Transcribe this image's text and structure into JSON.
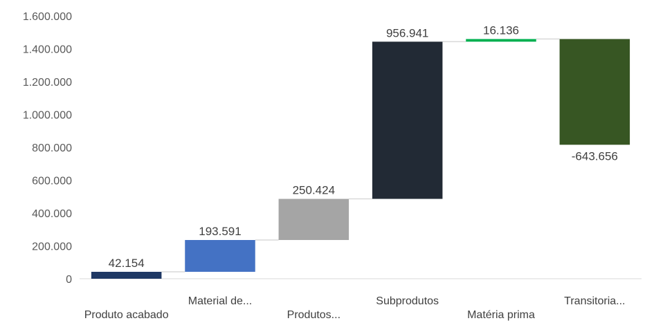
{
  "chart_data": {
    "type": "waterfall",
    "categories": [
      "Produto acabado",
      "Material de...",
      "Produtos...",
      "Subprodutos",
      "Matéria prima",
      "Transitoria..."
    ],
    "values": [
      42154,
      193591,
      250424,
      956941,
      16136,
      -643656
    ],
    "data_labels": [
      "42.154",
      "193.591",
      "250.424",
      "956.941",
      "16.136",
      "-643.656"
    ],
    "colors": [
      "#1f3864",
      "#4472c4",
      "#a5a5a5",
      "#222a35",
      "#00b050",
      "#375623"
    ],
    "ylim": [
      0,
      1600000
    ],
    "yticks": [
      0,
      200000,
      400000,
      600000,
      800000,
      1000000,
      1200000,
      1400000,
      1600000
    ],
    "ytick_labels": [
      "0",
      "200.000",
      "400.000",
      "600.000",
      "800.000",
      "1.000.000",
      "1.200.000",
      "1.400.000",
      "1.600.000"
    ],
    "connector_color": "#d9d9d9",
    "grid": false
  }
}
